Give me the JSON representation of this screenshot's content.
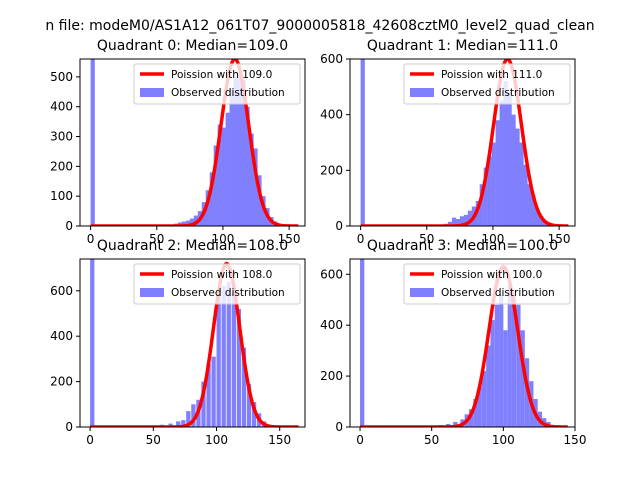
{
  "figure": {
    "suptitle": "n file: modeM0/AS1A12_061T07_9000005818_42608cztM0_level2_quad_clean"
  },
  "colors": {
    "hist": "#8080ff",
    "fit": "#ff0000",
    "axis": "#000000",
    "background": "#ffffff",
    "legend_border": "#cccccc"
  },
  "chart_data": [
    {
      "type": "bar",
      "title": "Quadrant 0: Median=109.0",
      "legend": [
        "Poission with 109.0",
        "Observed distribution"
      ],
      "legend_position": "top-right",
      "grid": false,
      "xlim": [
        -8,
        162
      ],
      "ylim": [
        0,
        560
      ],
      "xticks": [
        0,
        50,
        100,
        150
      ],
      "yticks": [
        0,
        100,
        200,
        300,
        400,
        500
      ],
      "poisson_mean": 109.0,
      "poisson_scale": 560,
      "hist_bin_width": 3.2,
      "hist_bins": [
        0,
        60,
        63,
        66,
        69,
        72,
        75,
        78,
        81,
        84,
        87,
        90,
        93,
        96,
        99,
        102,
        105,
        108,
        111,
        114,
        117,
        120,
        123,
        126,
        129,
        132,
        135,
        138,
        141
      ],
      "hist_values": [
        560,
        5,
        8,
        12,
        15,
        18,
        25,
        35,
        50,
        80,
        120,
        180,
        270,
        340,
        330,
        380,
        460,
        500,
        510,
        490,
        400,
        310,
        260,
        170,
        100,
        60,
        30,
        15,
        5
      ]
    },
    {
      "type": "bar",
      "title": "Quadrant 1: Median=111.0",
      "legend": [
        "Poission with 111.0",
        "Observed distribution"
      ],
      "legend_position": "top-right",
      "grid": false,
      "xlim": [
        -8,
        162
      ],
      "ylim": [
        0,
        600
      ],
      "xticks": [
        0,
        50,
        100,
        150
      ],
      "yticks": [
        0,
        200,
        400,
        600
      ],
      "poisson_mean": 111.0,
      "poisson_scale": 600,
      "hist_bin_width": 3.2,
      "hist_bins": [
        0,
        60,
        63,
        66,
        69,
        72,
        75,
        78,
        81,
        84,
        87,
        90,
        93,
        96,
        99,
        102,
        105,
        108,
        111,
        114,
        117,
        120,
        123,
        126,
        129,
        132,
        135,
        138,
        141
      ],
      "hist_values": [
        600,
        5,
        8,
        15,
        30,
        25,
        35,
        40,
        55,
        70,
        90,
        150,
        210,
        250,
        300,
        380,
        450,
        520,
        480,
        400,
        350,
        300,
        220,
        150,
        110,
        60,
        35,
        15,
        5
      ]
    },
    {
      "type": "bar",
      "title": "Quadrant 2: Median=108.0",
      "legend": [
        "Poission with 108.0",
        "Observed distribution"
      ],
      "legend_position": "top-right",
      "grid": false,
      "xlim": [
        -8,
        170
      ],
      "ylim": [
        0,
        740
      ],
      "xticks": [
        0,
        50,
        100,
        150
      ],
      "yticks": [
        0,
        200,
        400,
        600
      ],
      "poisson_mean": 108.0,
      "poisson_scale": 720,
      "hist_bin_width": 3.4,
      "hist_bins": [
        0,
        55,
        62,
        68,
        72,
        76,
        80,
        84,
        88,
        92,
        96,
        100,
        104,
        108,
        112,
        116,
        120,
        124,
        128,
        132,
        136,
        140
      ],
      "hist_values": [
        740,
        10,
        15,
        25,
        30,
        70,
        100,
        120,
        200,
        280,
        310,
        580,
        620,
        640,
        590,
        520,
        350,
        190,
        110,
        60,
        25,
        10
      ]
    },
    {
      "type": "bar",
      "title": "Quadrant 3: Median=100.0",
      "legend": [
        "Poission with 100.0",
        "Observed distribution"
      ],
      "legend_position": "top-right",
      "grid": false,
      "xlim": [
        -7,
        150
      ],
      "ylim": [
        0,
        660
      ],
      "xticks": [
        0,
        50,
        100,
        150
      ],
      "yticks": [
        0,
        200,
        400,
        600
      ],
      "poisson_mean": 100.0,
      "poisson_scale": 630,
      "hist_bin_width": 3.0,
      "hist_bins": [
        0,
        50,
        55,
        60,
        65,
        70,
        73,
        76,
        79,
        82,
        85,
        88,
        91,
        94,
        97,
        100,
        103,
        106,
        109,
        112,
        115,
        118,
        121,
        124,
        127,
        130,
        133,
        136
      ],
      "hist_values": [
        660,
        5,
        8,
        12,
        20,
        30,
        50,
        70,
        110,
        160,
        220,
        320,
        420,
        480,
        520,
        380,
        560,
        520,
        480,
        380,
        270,
        180,
        110,
        60,
        35,
        20,
        8,
        3
      ]
    }
  ]
}
